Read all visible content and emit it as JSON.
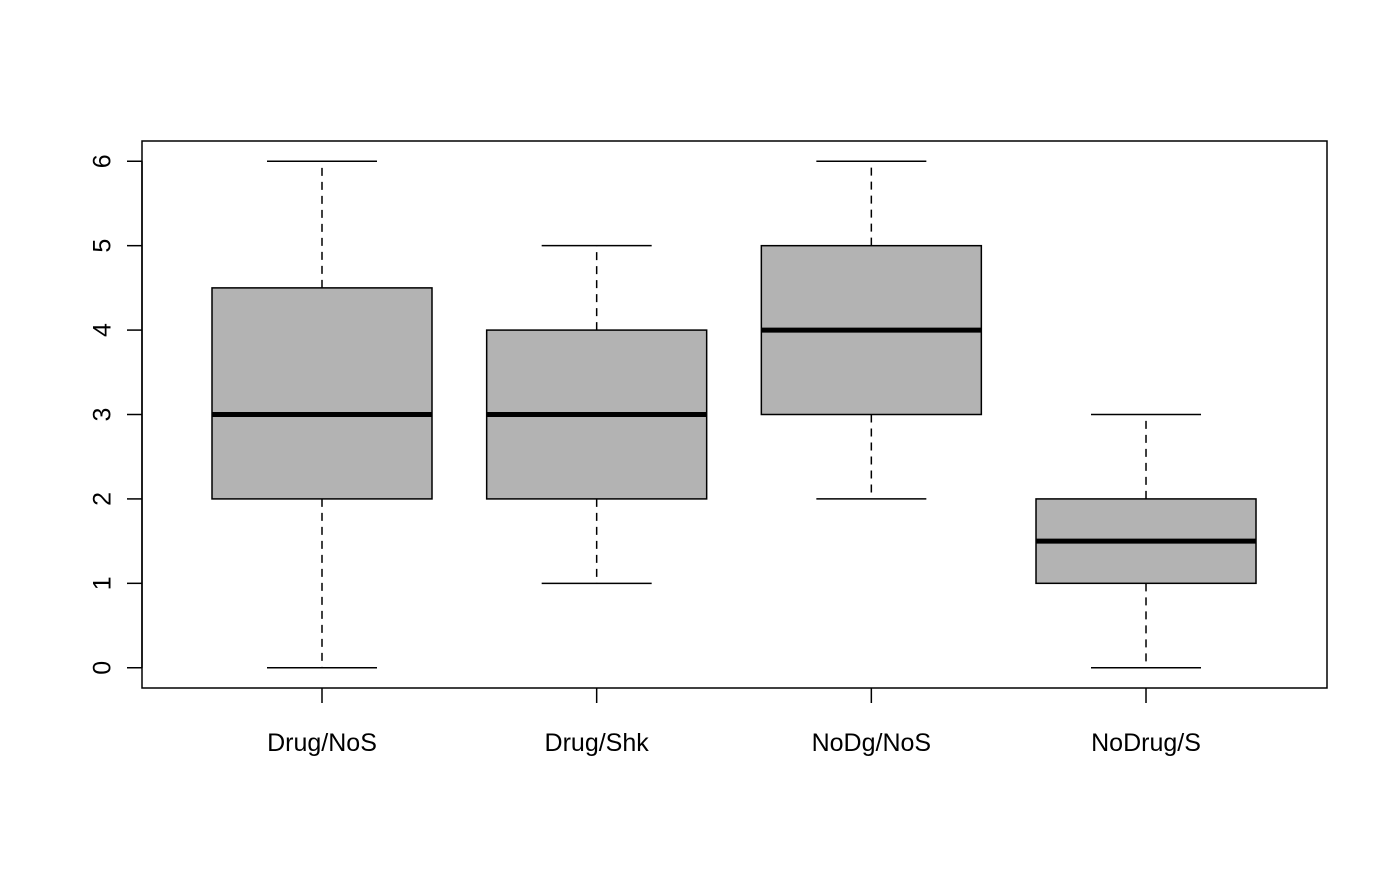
{
  "chart_data": {
    "type": "boxplot",
    "title": "",
    "xlabel": "",
    "ylabel": "",
    "categories": [
      "Drug/NoS",
      "Drug/Shk",
      "NoDg/NoS",
      "NoDrug/S"
    ],
    "boxes": [
      {
        "label": "Drug/NoS",
        "min": 0,
        "q1": 2,
        "median": 3,
        "q3": 4.5,
        "max": 6
      },
      {
        "label": "Drug/Shk",
        "min": 1,
        "q1": 2,
        "median": 3,
        "q3": 4,
        "max": 5
      },
      {
        "label": "NoDg/NoS",
        "min": 2,
        "q1": 3,
        "median": 4,
        "q3": 5,
        "max": 6
      },
      {
        "label": "NoDrug/S",
        "min": 0,
        "q1": 1,
        "median": 1.5,
        "q3": 2,
        "max": 3
      }
    ],
    "yticks": [
      "0",
      "1",
      "2",
      "3",
      "4",
      "5",
      "6"
    ],
    "ylim": [
      -0.24,
      6.24
    ],
    "grid": false,
    "legend": "none",
    "colors": {
      "box_fill": "#b3b3b3",
      "stroke": "#000000",
      "background": "#ffffff"
    }
  }
}
